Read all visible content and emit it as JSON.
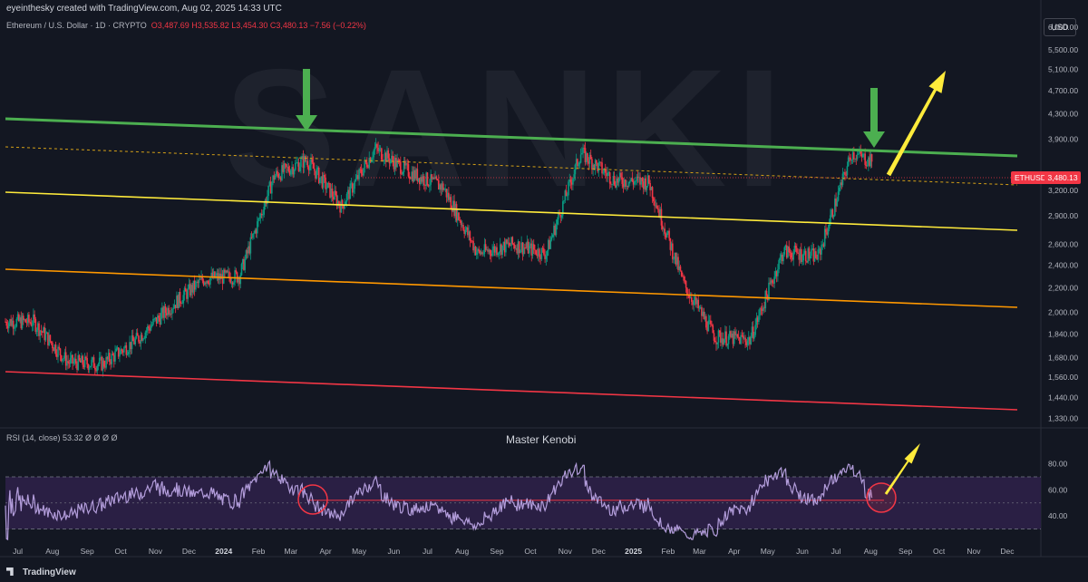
{
  "header": {
    "attribution": "eyeinthesky created with TradingView.com, Aug 02, 2025 14:33 UTC",
    "symbol_line": "Ethereum / U.S. Dollar · 1D · CRYPTO",
    "ohlc": "O3,487.69  H3,535.82  L3,454.30  C3,480.13  −7.56 (−0.22%)"
  },
  "currency_button": "USD",
  "price_tag": {
    "symbol": "ETHUSD",
    "value": "3,480.13"
  },
  "rsi_header": "RSI (14, close)  53.32  Ø  Ø  Ø  Ø",
  "indicator_title": "Master Kenobi",
  "footer_brand": "TradingView",
  "watermark": "SANKI",
  "colors": {
    "background": "#131722",
    "candle_up": "#089981",
    "candle_down": "#f23645",
    "green_line": "#4caf50",
    "yellow_line": "#ffeb3b",
    "orange_line": "#ff9800",
    "red_line": "#f23645",
    "rsi_line": "#b39ddb",
    "rsi_band": "#2a1f44",
    "arrow_green": "#4caf50",
    "arrow_yellow": "#ffeb3b"
  },
  "chart_data": [
    {
      "type": "candlestick",
      "scale": "log",
      "price_axis_ticks": [
        "6,000.00",
        "5,500.00",
        "5,100.00",
        "4,700.00",
        "4,300.00",
        "3,900.00",
        "3,200.00",
        "2,900.00",
        "2,600.00",
        "2,400.00",
        "2,200.00",
        "2,000.00",
        "1,840.00",
        "1,680.00",
        "1,560.00",
        "1,440.00",
        "1,330.00"
      ],
      "time_axis_ticks": [
        "Jul",
        "Aug",
        "Sep",
        "Oct",
        "Nov",
        "Dec",
        "2024",
        "Feb",
        "Mar",
        "Apr",
        "May",
        "Jun",
        "Jul",
        "Aug",
        "Sep",
        "Oct",
        "Nov",
        "Dec",
        "2025",
        "Feb",
        "Mar",
        "Apr",
        "May",
        "Jun",
        "Jul",
        "Aug",
        "Sep",
        "Oct",
        "Nov",
        "Dec"
      ],
      "ylim": [
        1300,
        6300
      ],
      "closes_monthly": [
        {
          "t": "2023-07",
          "c": 1930
        },
        {
          "t": "2023-08",
          "c": 1650
        },
        {
          "t": "2023-09",
          "c": 1640
        },
        {
          "t": "2023-10",
          "c": 1800
        },
        {
          "t": "2023-11",
          "c": 2050
        },
        {
          "t": "2023-12",
          "c": 2280
        },
        {
          "t": "2024-01",
          "c": 2300
        },
        {
          "t": "2024-02",
          "c": 3380
        },
        {
          "t": "2024-03",
          "c": 3600
        },
        {
          "t": "2024-04",
          "c": 3010
        },
        {
          "t": "2024-05",
          "c": 3760
        },
        {
          "t": "2024-06",
          "c": 3430
        },
        {
          "t": "2024-07",
          "c": 3240
        },
        {
          "t": "2024-08",
          "c": 2510
        },
        {
          "t": "2024-09",
          "c": 2600
        },
        {
          "t": "2024-10",
          "c": 2510
        },
        {
          "t": "2024-11",
          "c": 3700
        },
        {
          "t": "2024-12",
          "c": 3330
        },
        {
          "t": "2025-01",
          "c": 3300
        },
        {
          "t": "2025-02",
          "c": 2230
        },
        {
          "t": "2025-03",
          "c": 1820
        },
        {
          "t": "2025-04",
          "c": 1800
        },
        {
          "t": "2025-05",
          "c": 2530
        },
        {
          "t": "2025-06",
          "c": 2480
        },
        {
          "t": "2025-07",
          "c": 3700
        },
        {
          "t": "2025-08",
          "c": 3480
        }
      ],
      "lines": [
        {
          "name": "green resistance",
          "color": "#4caf50"
        },
        {
          "name": "dashed mid",
          "color": "#d4a017"
        },
        {
          "name": "yellow channel",
          "color": "#ffeb3b"
        },
        {
          "name": "orange channel",
          "color": "#ff9800"
        },
        {
          "name": "red support",
          "color": "#f23645"
        }
      ]
    },
    {
      "type": "line",
      "ylim": [
        20,
        95
      ],
      "y_axis_ticks": [
        "80.00",
        "60.00",
        "40.00"
      ],
      "bands": [
        30,
        70
      ],
      "midline": 50
    }
  ]
}
